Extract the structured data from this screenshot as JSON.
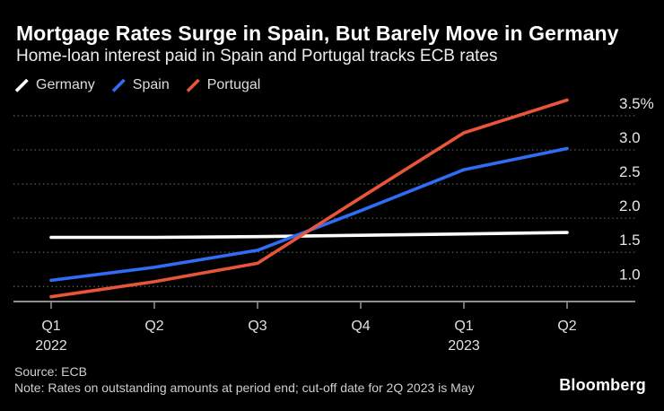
{
  "title": "Mortgage Rates Surge in Spain, But Barely Move in Germany",
  "subtitle": "Home-loan interest paid in Spain and Portugal tracks ECB rates",
  "legend": {
    "items": [
      {
        "label": "Germany",
        "color": "#ffffff"
      },
      {
        "label": "Spain",
        "color": "#2f6df4"
      },
      {
        "label": "Portugal",
        "color": "#e8553a"
      }
    ]
  },
  "chart_data": {
    "type": "line",
    "categories": [
      "Q1 2022",
      "Q2 2022",
      "Q3 2022",
      "Q4 2022",
      "Q1 2023",
      "Q2 2023"
    ],
    "x_tick_labels": [
      "Q1",
      "Q2",
      "Q3",
      "Q4",
      "Q1",
      "Q2"
    ],
    "year_labels": [
      {
        "index": 0,
        "label": "2022"
      },
      {
        "index": 4,
        "label": "2023"
      }
    ],
    "series": [
      {
        "name": "Germany",
        "color": "#ffffff",
        "values": [
          1.72,
          1.72,
          1.73,
          1.75,
          1.77,
          1.79
        ]
      },
      {
        "name": "Spain",
        "color": "#2f6df4",
        "values": [
          1.09,
          1.28,
          1.53,
          2.11,
          2.71,
          3.02
        ]
      },
      {
        "name": "Portugal",
        "color": "#e8553a",
        "values": [
          0.85,
          1.07,
          1.34,
          2.3,
          3.25,
          3.73
        ]
      }
    ],
    "y_ticks": [
      3.5,
      3.0,
      2.5,
      2.0,
      1.5,
      1.0
    ],
    "y_tick_labels": [
      "3.5%",
      "3.0",
      "2.5",
      "2.0",
      "1.5",
      "1.0"
    ],
    "ylim": [
      0.75,
      3.8
    ],
    "xlabel": "",
    "ylabel": "",
    "grid": "horizontal-dotted",
    "legend_position": "top-left"
  },
  "footer": {
    "source": "Source: ECB",
    "note": "Note: Rates on outstanding amounts at period end; cut-off date for 2Q 2023 is May",
    "brand": "Bloomberg"
  },
  "colors": {
    "background": "#000000",
    "grid": "#515151",
    "axis": "#8f8f8f",
    "y_label": "#e6e6e6",
    "x_label": "#e0e0e0",
    "footer_text": "#cfcfcf"
  }
}
